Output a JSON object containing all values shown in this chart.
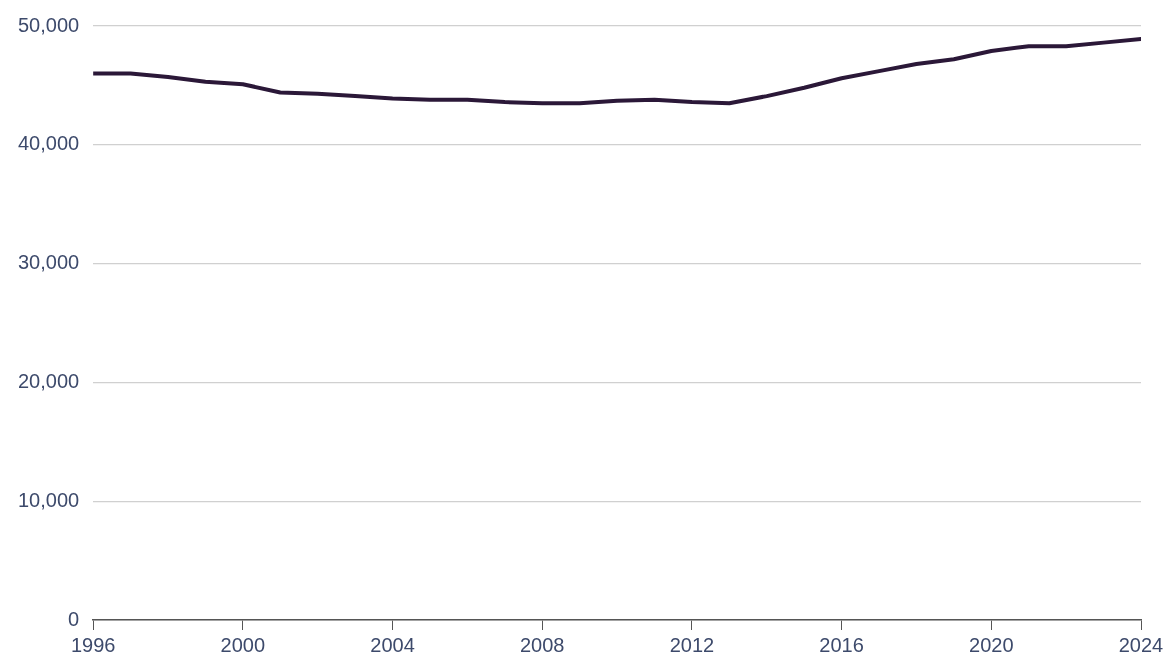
{
  "chart_data": {
    "type": "line",
    "x": [
      1996,
      1997,
      1998,
      1999,
      2000,
      2001,
      2002,
      2003,
      2004,
      2005,
      2006,
      2007,
      2008,
      2009,
      2010,
      2011,
      2012,
      2013,
      2014,
      2015,
      2016,
      2017,
      2018,
      2019,
      2020,
      2021,
      2022,
      2023,
      2024
    ],
    "series": [
      {
        "color": "#2b1838",
        "values": [
          46000,
          46000,
          45700,
          45300,
          45100,
          44400,
          44300,
          44100,
          43900,
          43800,
          43800,
          43600,
          43500,
          43500,
          43700,
          43800,
          43600,
          43500,
          44100,
          44800,
          45600,
          46200,
          46800,
          47200,
          47900,
          48300,
          48300,
          48600,
          48900
        ]
      }
    ],
    "xlim": [
      1996,
      2024
    ],
    "xticks": [
      1996,
      2000,
      2004,
      2008,
      2012,
      2016,
      2020,
      2024
    ],
    "ylim": [
      0,
      50000
    ],
    "yticks": [
      0,
      {
        "value": 10000,
        "label": "10,000"
      },
      {
        "value": 20000,
        "label": "20,000"
      },
      {
        "value": 30000,
        "label": "30,000"
      },
      {
        "value": 40000,
        "label": "40,000"
      },
      {
        "value": 50000,
        "label": "50,000"
      }
    ],
    "grid": "y",
    "marker": "none",
    "line_style": "solid",
    "legend": false
  }
}
